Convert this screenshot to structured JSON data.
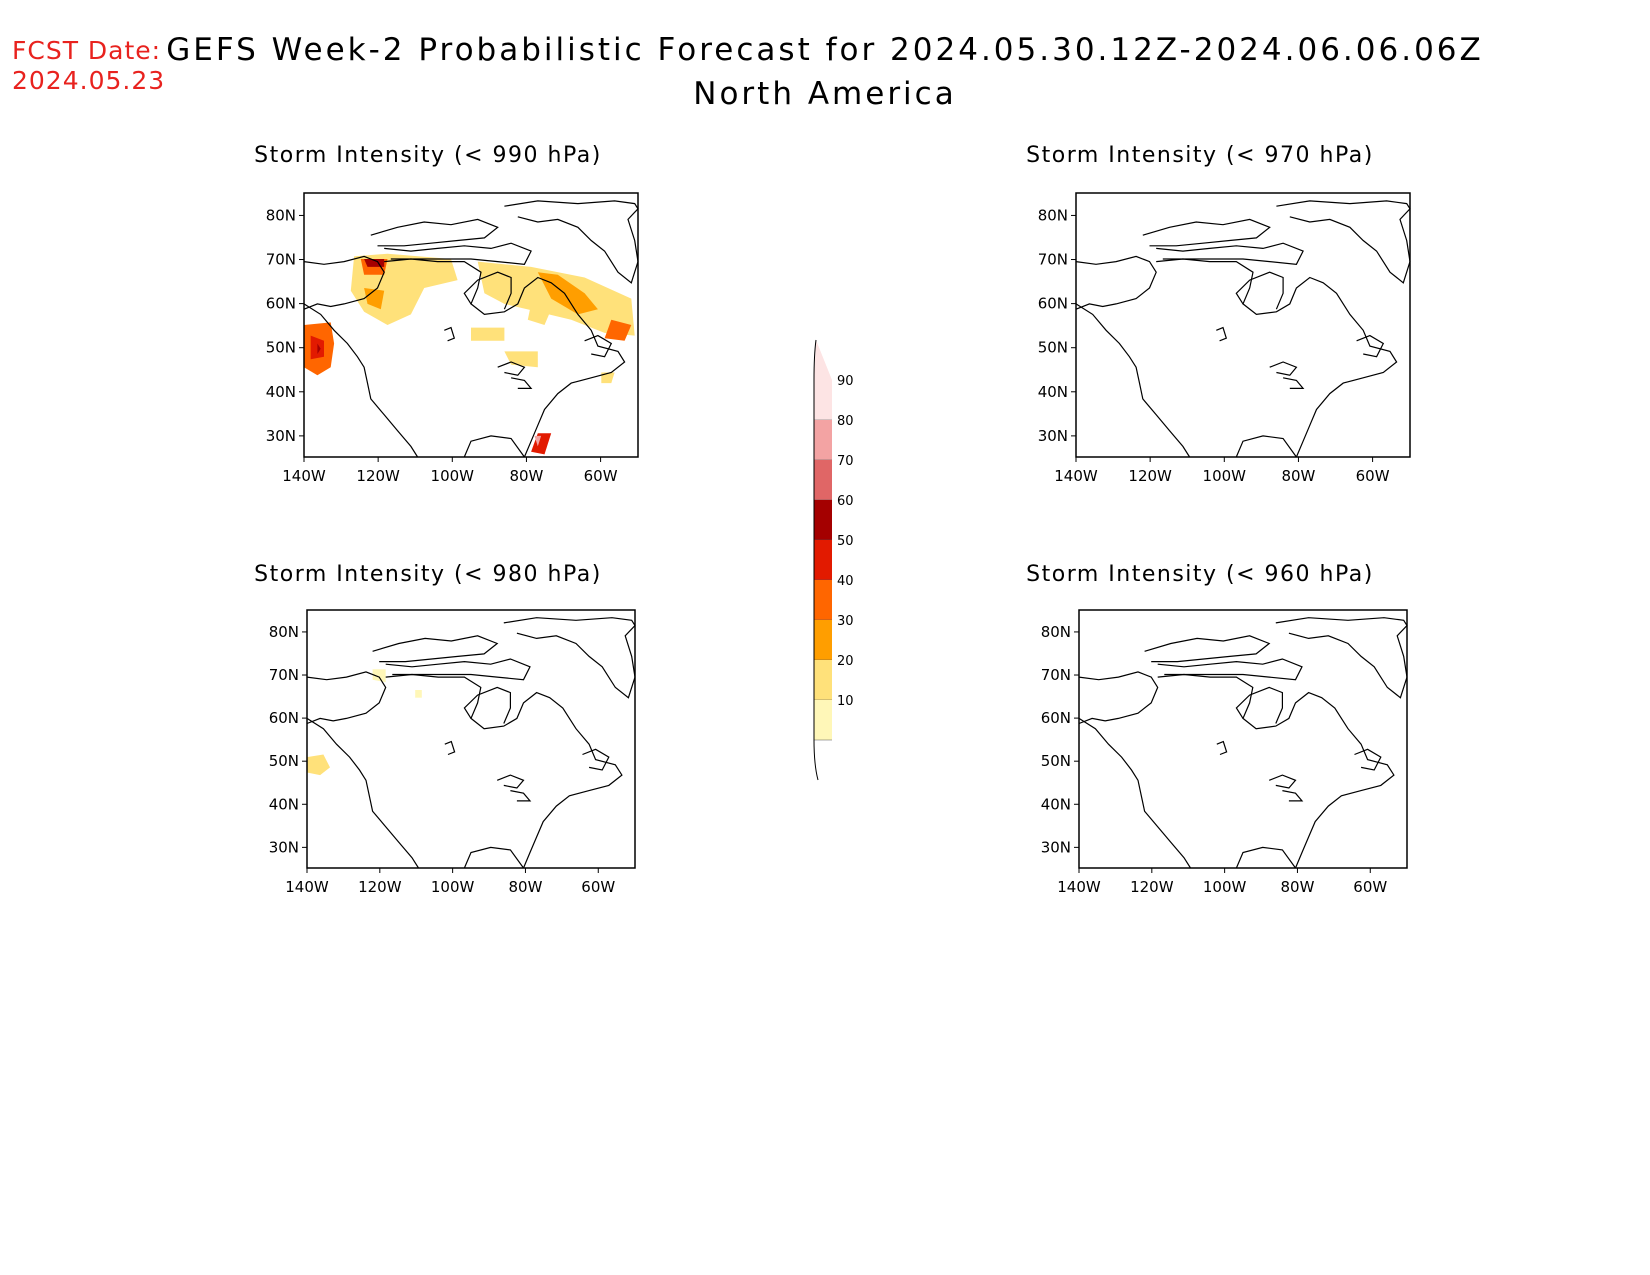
{
  "fcst_date": {
    "label": "FCST Date:",
    "value": "2024.05.23"
  },
  "title": "GEFS Week-2 Probabilistic Forecast for 2024.05.30.12Z-2024.06.06.06Z",
  "subtitle": "North America",
  "axis": {
    "lat_ticks": [
      "80N",
      "70N",
      "60N",
      "50N",
      "40N",
      "30N"
    ],
    "lon_ticks": [
      "140W",
      "120W",
      "100W",
      "80W",
      "60W"
    ]
  },
  "panels": [
    {
      "id": "p990",
      "title": "Storm Intensity (< 990 hPa)"
    },
    {
      "id": "p970",
      "title": "Storm Intensity (< 970 hPa)"
    },
    {
      "id": "p980",
      "title": "Storm Intensity (< 980 hPa)"
    },
    {
      "id": "p960",
      "title": "Storm Intensity (< 960 hPa)"
    }
  ],
  "colorbar": {
    "labels": [
      "90",
      "80",
      "70",
      "60",
      "50",
      "40",
      "30",
      "20",
      "10"
    ],
    "colors": [
      "#fde4e4",
      "#f3a3a3",
      "#e06666",
      "#a40000",
      "#e21a00",
      "#ff6600",
      "#ff9e00",
      "#ffe17a",
      "#fff7b8"
    ]
  }
}
